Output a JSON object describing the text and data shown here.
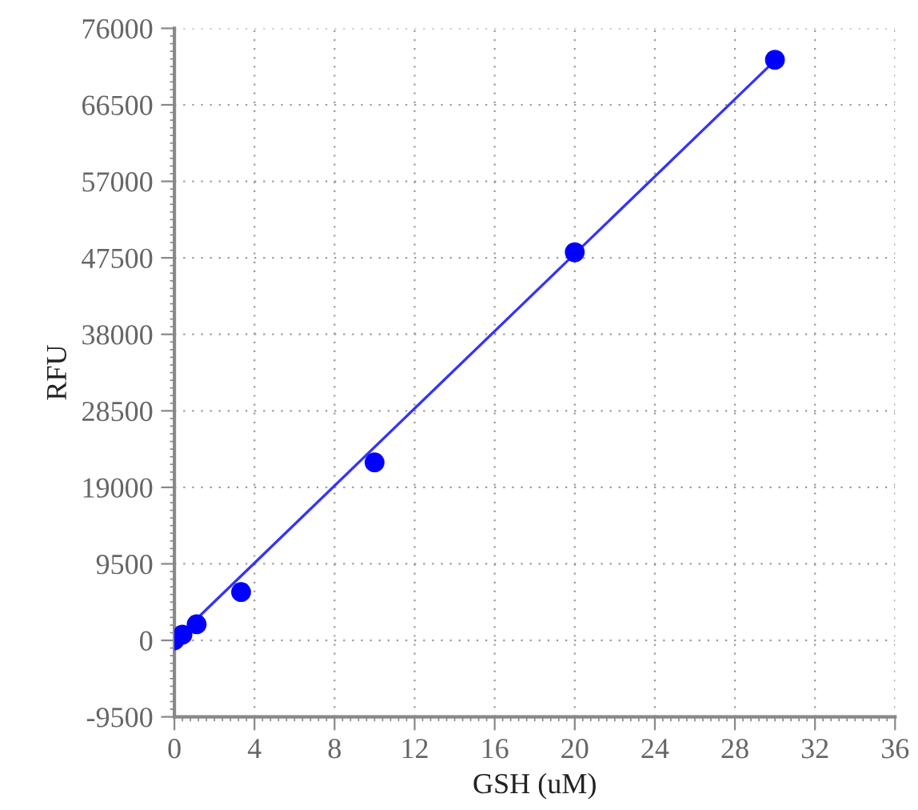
{
  "chart_data": {
    "type": "scatter",
    "xlabel": "GSH (uM)",
    "ylabel": "RFU",
    "series": [
      {
        "color": "#0000ff",
        "x": [
          0,
          0.4,
          1.11,
          3.33,
          10,
          20,
          30
        ],
        "values": [
          0,
          700,
          2000,
          6000,
          22100,
          48200,
          72100
        ],
        "marker": "circle"
      },
      {
        "type": "line",
        "color": "#3333ff",
        "x": [
          0,
          30
        ],
        "values": [
          0,
          72000
        ],
        "line_style": "solid"
      }
    ],
    "xlim": [
      0,
      36
    ],
    "xticks": [
      0,
      4,
      8,
      12,
      16,
      20,
      24,
      28,
      32,
      36
    ],
    "ylim": [
      -9500,
      76000
    ],
    "yticks": [
      -9500,
      0,
      9500,
      19000,
      28500,
      38000,
      47500,
      57000,
      66500,
      76000
    ],
    "grid": true,
    "legend": false
  }
}
